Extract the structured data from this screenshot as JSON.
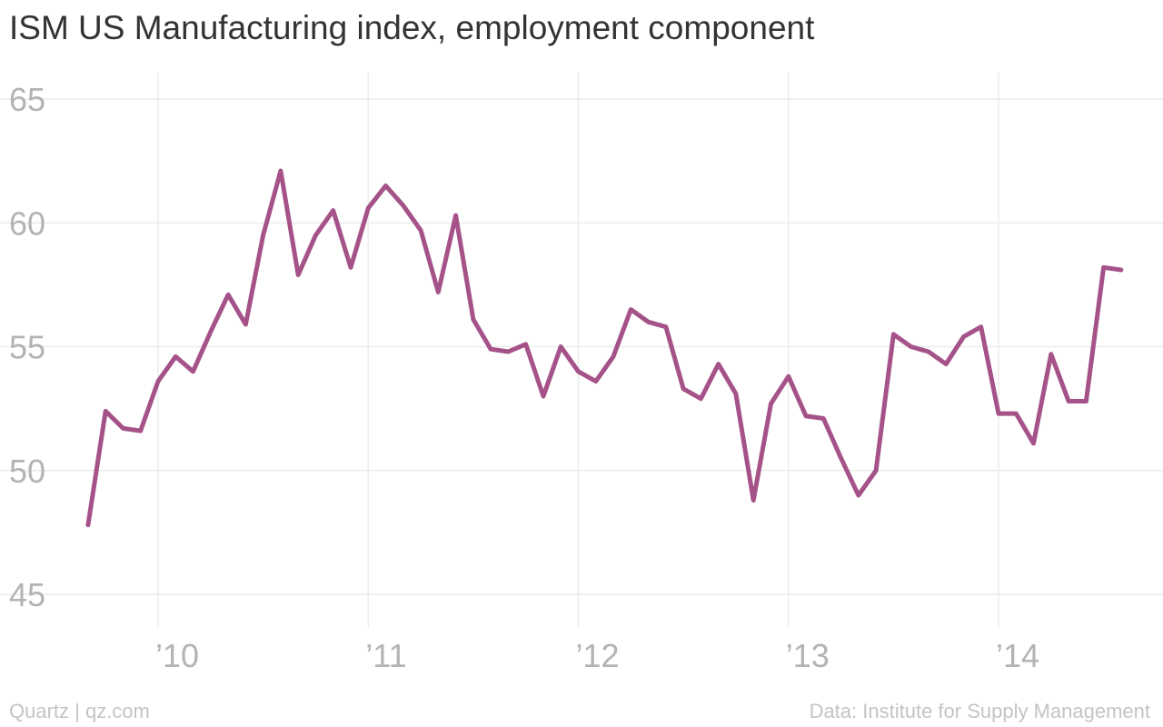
{
  "chart_data": {
    "type": "line",
    "title": "ISM US Manufacturing index, employment component",
    "xlabel": "",
    "ylabel": "",
    "ylim": [
      45,
      65
    ],
    "yticks": [
      45,
      50,
      55,
      60,
      65
    ],
    "xtick_labels": [
      "’10",
      "’11",
      "’12",
      "’13",
      "’14"
    ],
    "grid": true,
    "line_color": "#a55289",
    "x": [
      "2009-09",
      "2009-10",
      "2009-11",
      "2009-12",
      "2010-01",
      "2010-02",
      "2010-03",
      "2010-04",
      "2010-05",
      "2010-06",
      "2010-07",
      "2010-08",
      "2010-09",
      "2010-10",
      "2010-11",
      "2010-12",
      "2011-01",
      "2011-02",
      "2011-03",
      "2011-04",
      "2011-05",
      "2011-06",
      "2011-07",
      "2011-08",
      "2011-09",
      "2011-10",
      "2011-11",
      "2011-12",
      "2012-01",
      "2012-02",
      "2012-03",
      "2012-04",
      "2012-05",
      "2012-06",
      "2012-07",
      "2012-08",
      "2012-09",
      "2012-10",
      "2012-11",
      "2012-12",
      "2013-01",
      "2013-02",
      "2013-03",
      "2013-04",
      "2013-05",
      "2013-06",
      "2013-07",
      "2013-08",
      "2013-09",
      "2013-10",
      "2013-11",
      "2013-12",
      "2014-01",
      "2014-02",
      "2014-03",
      "2014-04",
      "2014-05",
      "2014-06",
      "2014-07",
      "2014-08"
    ],
    "series": [
      {
        "values": [
          47.8,
          52.4,
          51.7,
          51.6,
          53.6,
          54.6,
          54.0,
          55.6,
          57.1,
          55.9,
          59.5,
          62.1,
          57.9,
          59.5,
          60.5,
          58.2,
          60.6,
          61.5,
          60.7,
          59.7,
          57.2,
          60.3,
          56.1,
          54.9,
          54.8,
          55.1,
          53.0,
          55.0,
          54.0,
          53.6,
          54.6,
          56.5,
          56.0,
          55.8,
          53.3,
          52.9,
          54.3,
          53.1,
          48.8,
          52.7,
          53.8,
          52.2,
          52.1,
          50.5,
          49.0,
          50.0,
          55.5,
          55.0,
          54.8,
          54.3,
          55.4,
          55.8,
          52.3,
          52.3,
          51.1,
          54.7,
          52.8,
          52.8,
          58.2,
          58.1
        ]
      }
    ]
  },
  "footer": {
    "source_left": "Quartz | qz.com",
    "source_right": "Data: Institute for Supply Management"
  }
}
